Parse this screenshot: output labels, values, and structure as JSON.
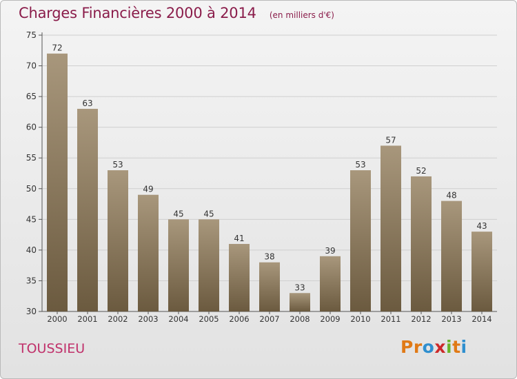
{
  "title": "Charges Financières 2000 à 2014",
  "subtitle": "(en milliers d'€)",
  "commune": "TOUSSIEU",
  "logo": {
    "letters": [
      "P",
      "r",
      "o",
      "x",
      "i",
      "t",
      "i"
    ],
    "colors": [
      "#e07a16",
      "#e07a16",
      "#2f8fcf",
      "#cc2a2a",
      "#6ab42a",
      "#e07a16",
      "#2f8fcf"
    ]
  },
  "colors": {
    "bar_top": "#a8977c",
    "bar_bottom": "#6b5a3f",
    "grid": "#cfcfcf",
    "text": "#333333",
    "title": "#8a1c4a"
  },
  "chart_data": {
    "type": "bar",
    "categories": [
      "2000",
      "2001",
      "2002",
      "2003",
      "2004",
      "2005",
      "2006",
      "2007",
      "2008",
      "2009",
      "2010",
      "2011",
      "2012",
      "2013",
      "2014"
    ],
    "values": [
      72,
      63,
      53,
      49,
      45,
      45,
      41,
      38,
      33,
      39,
      53,
      57,
      52,
      48,
      43
    ],
    "title": "Charges Financières 2000 à 2014",
    "subtitle": "(en milliers d'€)",
    "ylim": [
      30,
      75
    ],
    "yticks": [
      30,
      35,
      40,
      45,
      50,
      55,
      60,
      65,
      70,
      75
    ],
    "grid": true
  }
}
